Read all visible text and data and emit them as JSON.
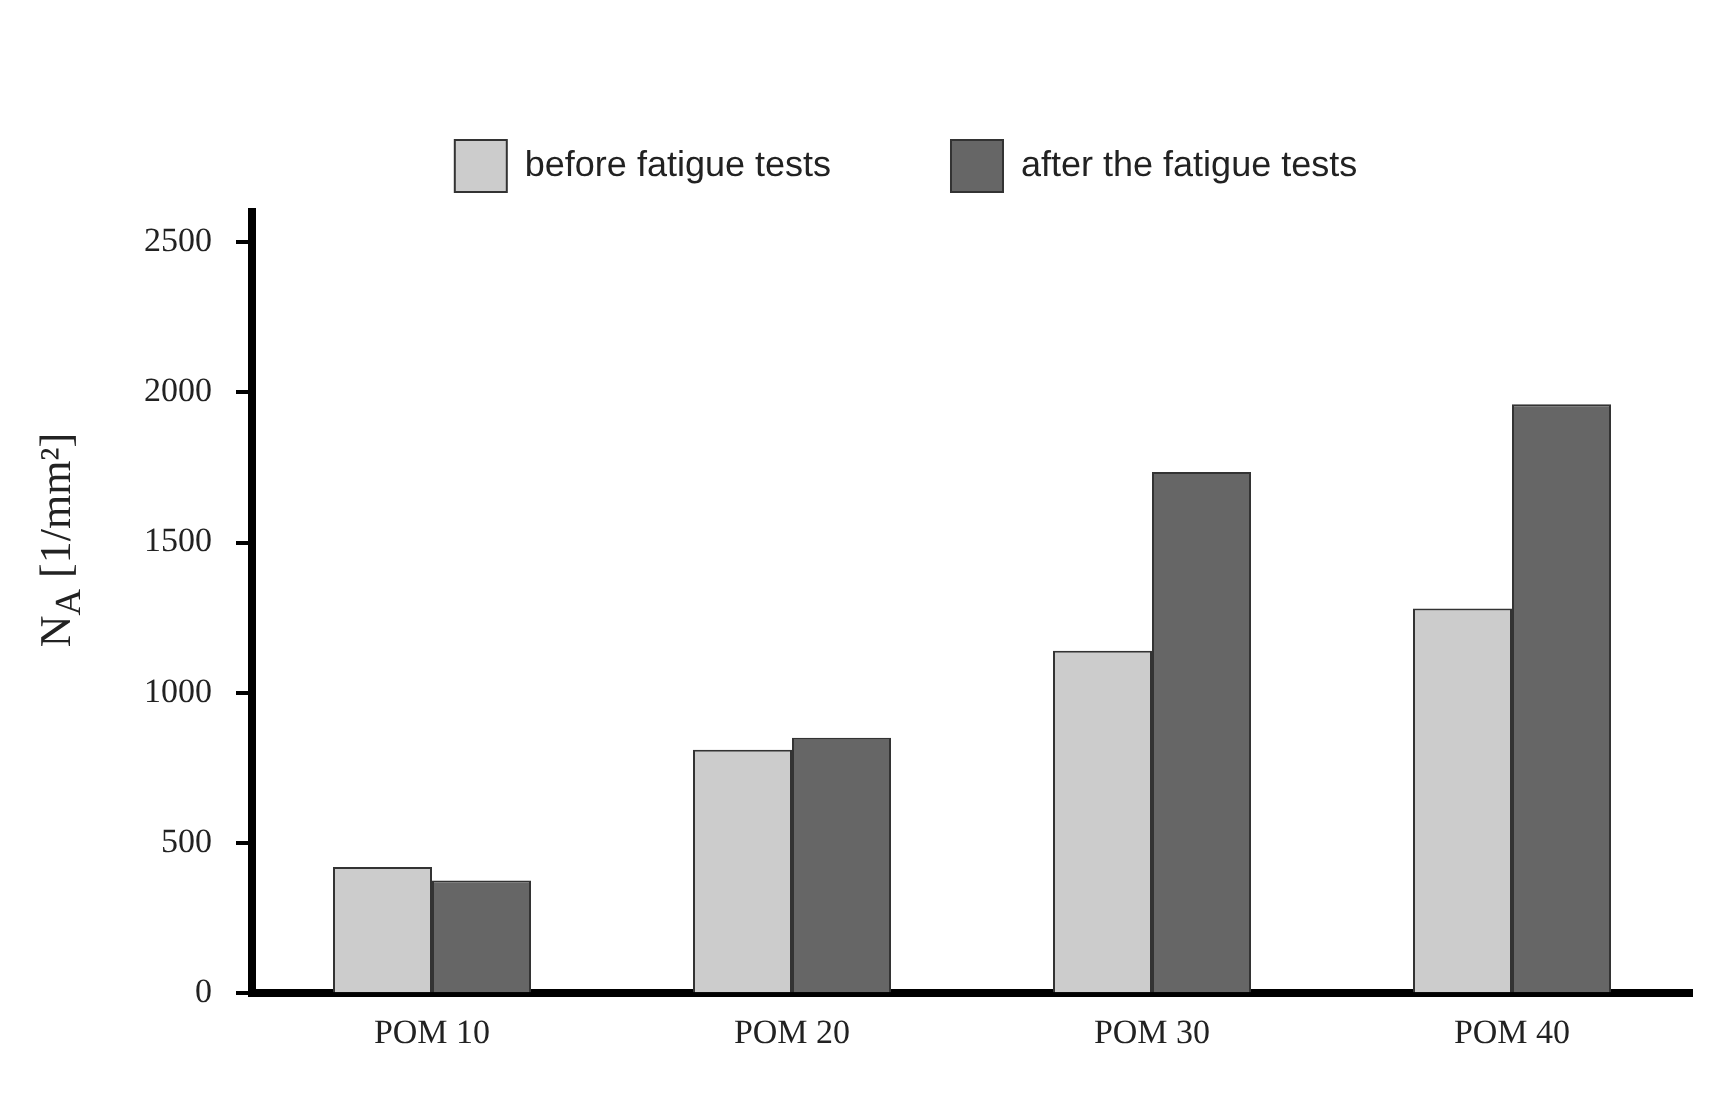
{
  "chart_data": {
    "type": "bar",
    "ylabel": "N$_{A}$ [1/mm²]",
    "categories": [
      "POM 10",
      "POM 20",
      "POM 30",
      "POM 40"
    ],
    "series": [
      {
        "name": "before fatigue tests",
        "color": "#cccccc",
        "values": [
          420,
          810,
          1140,
          1280
        ]
      },
      {
        "name": "after the fatigue tests",
        "color": "#666666",
        "values": [
          375,
          850,
          1735,
          1960
        ]
      }
    ],
    "ylim": [
      0,
      2600
    ],
    "yticks": [
      0,
      500,
      1000,
      1500,
      2000,
      2500
    ],
    "grid": false,
    "legend": "top"
  }
}
